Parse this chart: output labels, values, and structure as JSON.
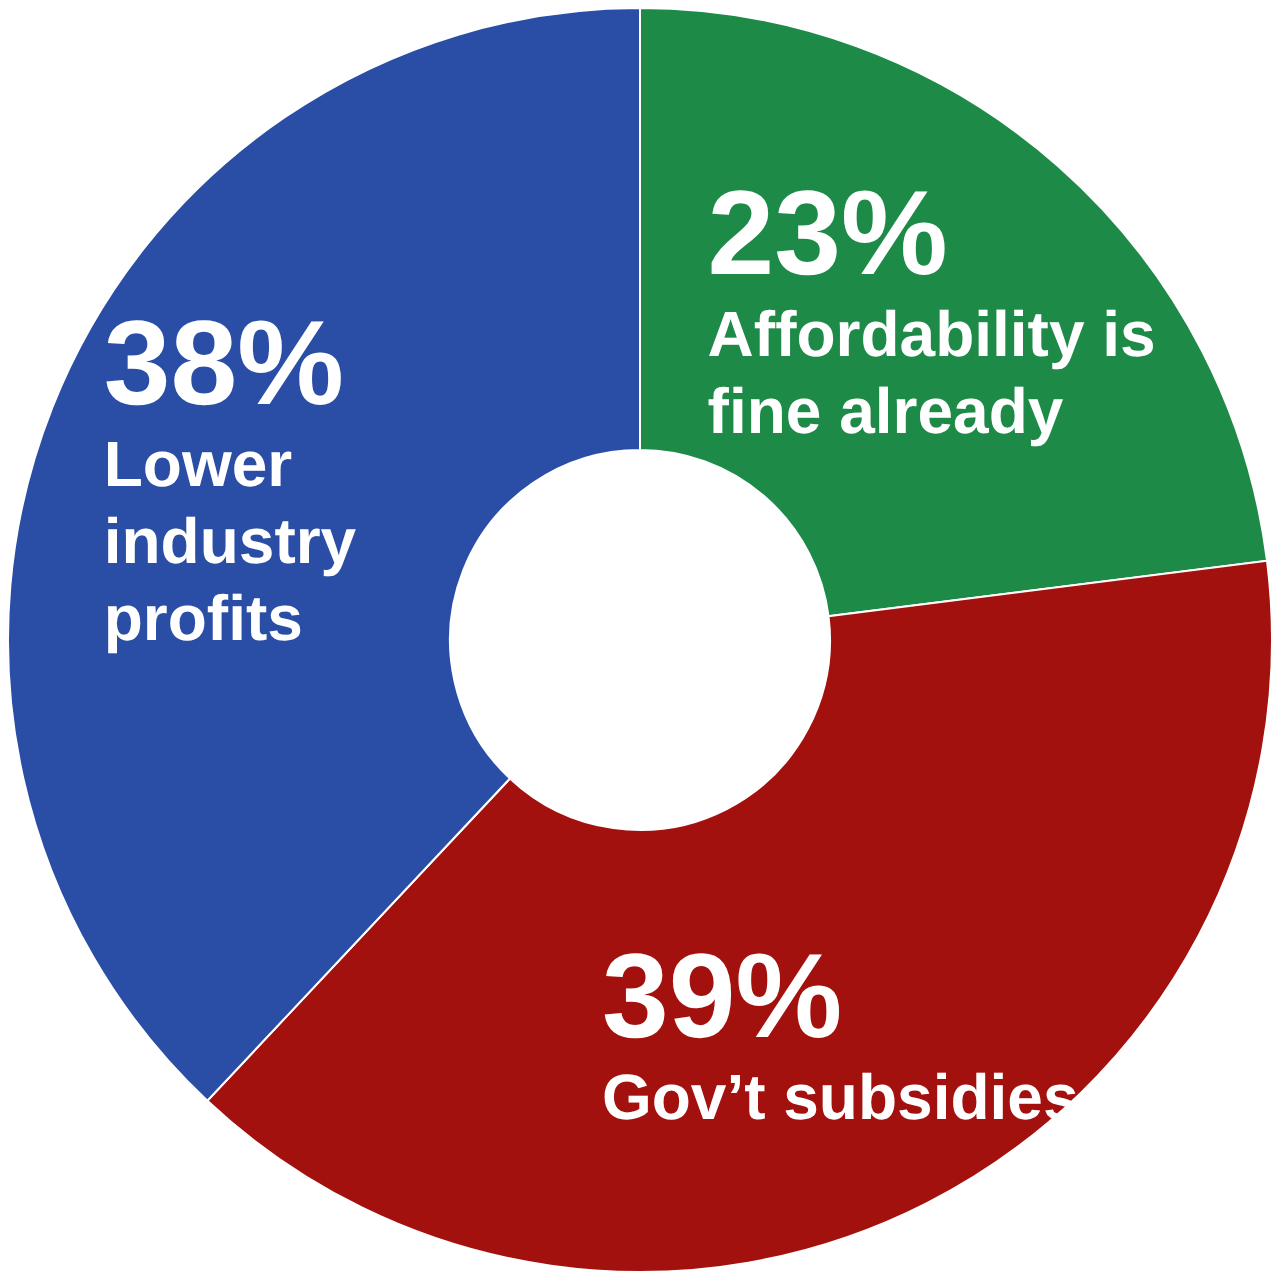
{
  "chart_data": {
    "type": "donut",
    "categories": [
      "Affordability is fine already",
      "Gov’t subsidies",
      "Lower industry profits"
    ],
    "values": [
      23,
      39,
      38
    ],
    "colors": [
      "#1e8a48",
      "#a3110f",
      "#2a4ea6"
    ],
    "value_labels": [
      "23%",
      "39%",
      "38%"
    ]
  }
}
